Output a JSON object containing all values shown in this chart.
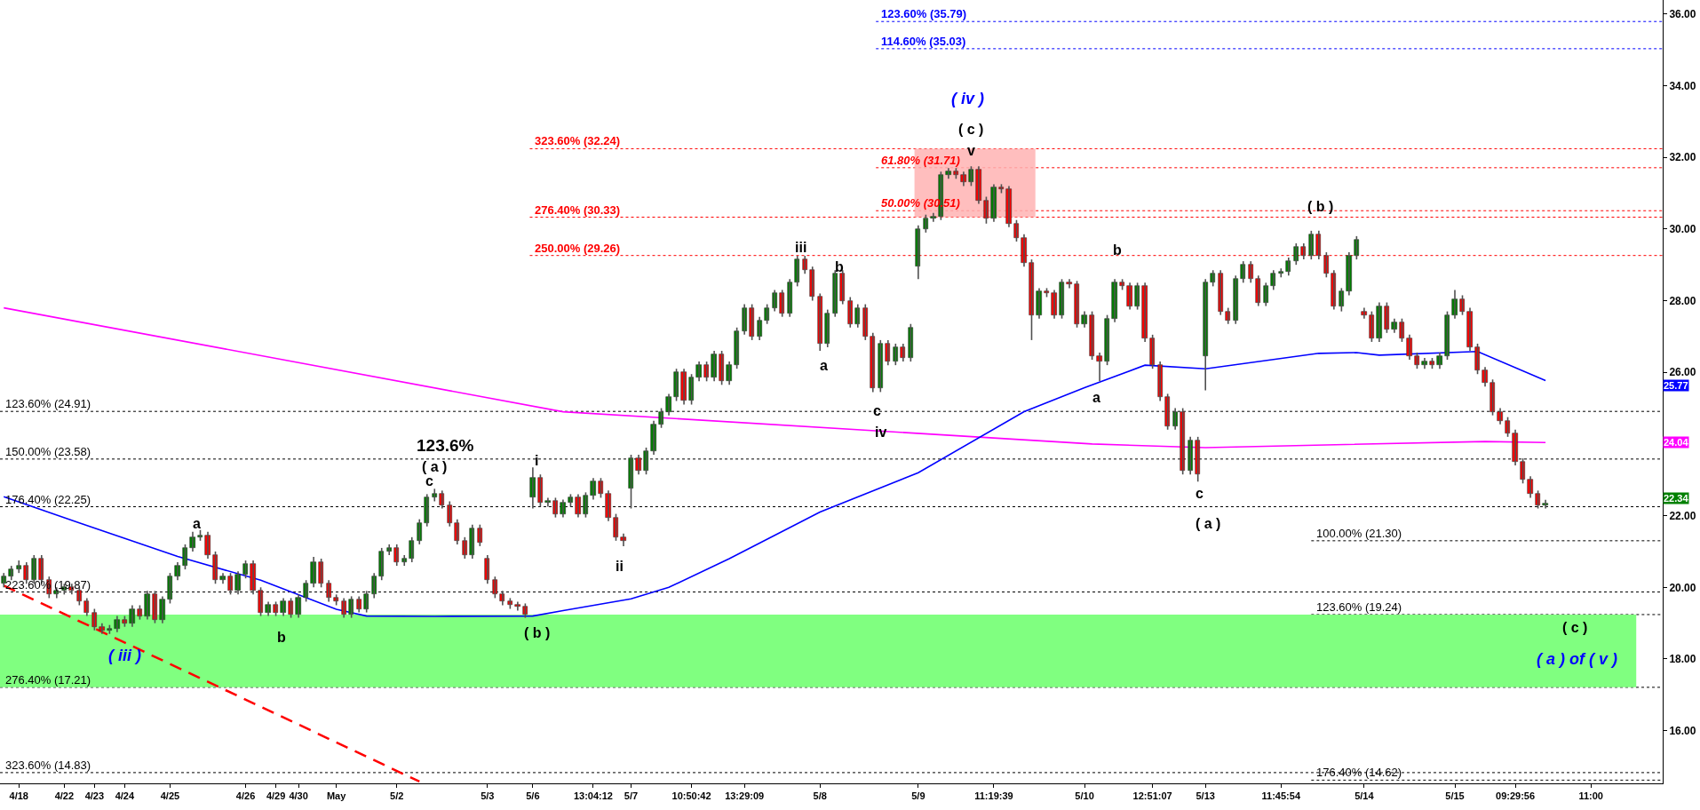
{
  "chart_data": {
    "type": "candlestick",
    "grid": false,
    "ylim": [
      14.53,
      36.39
    ],
    "yticks": [
      {
        "value": 16,
        "label": "16.00"
      },
      {
        "value": 18,
        "label": "18.00"
      },
      {
        "value": 20,
        "label": "20.00"
      },
      {
        "value": 22,
        "label": "22.00"
      },
      {
        "value": 24,
        "label": null
      },
      {
        "value": 26,
        "label": "26.00"
      },
      {
        "value": 28,
        "label": "28.00"
      },
      {
        "value": 30,
        "label": "30.00"
      },
      {
        "value": 32,
        "label": "32.00"
      },
      {
        "value": 34,
        "label": "34.00"
      },
      {
        "value": 36,
        "label": "36.00"
      }
    ],
    "categories": [
      null,
      null,
      "4/18",
      null,
      null,
      null,
      null,
      null,
      "4/22",
      null,
      null,
      null,
      "4/23",
      null,
      null,
      null,
      "4/24",
      null,
      null,
      null,
      null,
      null,
      "4/25",
      null,
      null,
      null,
      null,
      null,
      null,
      null,
      null,
      null,
      "4/26",
      null,
      null,
      null,
      "4/29",
      null,
      null,
      "4/30",
      null,
      null,
      null,
      null,
      "May",
      null,
      null,
      null,
      null,
      null,
      null,
      null,
      "5/2",
      null,
      null,
      null,
      null,
      null,
      null,
      null,
      null,
      null,
      null,
      null,
      "5/3",
      null,
      null,
      null,
      null,
      null,
      "5/6",
      null,
      null,
      null,
      null,
      null,
      null,
      null,
      "13:04:12",
      null,
      null,
      null,
      null,
      "5/7",
      null,
      null,
      null,
      null,
      null,
      null,
      null,
      "10:50:42",
      null,
      null,
      null,
      null,
      null,
      null,
      "13:29:09",
      null,
      null,
      null,
      null,
      null,
      null,
      null,
      null,
      null,
      "5/8",
      null,
      null,
      null,
      null,
      null,
      null,
      null,
      null,
      null,
      null,
      null,
      null,
      "5/9",
      null,
      null,
      null,
      null,
      null,
      null,
      null,
      null,
      null,
      "11:19:39",
      null,
      null,
      null,
      null,
      null,
      null,
      null,
      null,
      null,
      null,
      null,
      "5/10",
      null,
      null,
      null,
      null,
      null,
      null,
      null,
      null,
      "12:51:07",
      null,
      null,
      null,
      null,
      null,
      null,
      "5/13",
      null,
      null,
      null,
      null,
      null,
      null,
      null,
      null,
      null,
      "11:45:54",
      null,
      null,
      null,
      null,
      null,
      null,
      null,
      null,
      null,
      null,
      "5/14",
      null,
      null,
      null,
      null,
      null,
      null,
      null,
      null,
      null,
      null,
      null,
      "5/15",
      null,
      null,
      null,
      null,
      null,
      null,
      null,
      "09:29:56",
      null,
      null,
      null,
      null,
      null,
      null,
      null,
      null,
      null,
      "11:00",
      null,
      null,
      null,
      null,
      null,
      null,
      null,
      null,
      null
    ],
    "ohlc": [
      [
        20.1,
        20.4,
        20.0,
        20.3
      ],
      [
        20.3,
        20.6,
        20.2,
        20.5
      ],
      [
        20.5,
        20.75,
        20.4,
        20.6
      ],
      [
        20.6,
        20.7,
        20.1,
        20.2
      ],
      [
        20.2,
        20.9,
        20.1,
        20.8
      ],
      [
        20.8,
        20.9,
        20.1,
        20.2
      ],
      [
        20.2,
        20.3,
        19.7,
        19.8
      ],
      [
        19.8,
        20.0,
        19.7,
        19.9
      ],
      [
        19.9,
        20.1,
        19.8,
        20.0
      ],
      [
        20.0,
        20.1,
        19.8,
        19.9
      ],
      [
        19.9,
        20.0,
        19.5,
        19.6
      ],
      [
        19.6,
        19.7,
        19.2,
        19.3
      ],
      [
        19.3,
        19.4,
        18.8,
        18.9
      ],
      [
        18.9,
        19.0,
        18.7,
        18.8
      ],
      [
        18.8,
        18.95,
        18.7,
        18.85
      ],
      [
        18.85,
        19.2,
        18.75,
        19.1
      ],
      [
        19.1,
        19.2,
        18.9,
        19.0
      ],
      [
        19.0,
        19.5,
        18.9,
        19.4
      ],
      [
        19.4,
        19.5,
        19.1,
        19.2
      ],
      [
        19.2,
        19.9,
        19.1,
        19.8
      ],
      [
        19.8,
        19.9,
        19.0,
        19.1
      ],
      [
        19.1,
        19.75,
        19.0,
        19.65
      ],
      [
        19.65,
        20.4,
        19.55,
        20.3
      ],
      [
        20.3,
        20.7,
        20.2,
        20.6
      ],
      [
        20.6,
        21.2,
        20.5,
        21.1
      ],
      [
        21.1,
        21.55,
        21.0,
        21.4
      ],
      [
        21.4,
        21.6,
        21.3,
        21.45
      ],
      [
        21.45,
        21.55,
        20.8,
        20.9
      ],
      [
        20.9,
        21.0,
        20.1,
        20.2
      ],
      [
        20.2,
        20.4,
        20.1,
        20.3
      ],
      [
        20.3,
        20.4,
        19.8,
        19.9
      ],
      [
        19.9,
        20.45,
        19.8,
        20.35
      ],
      [
        20.35,
        20.75,
        20.25,
        20.65
      ],
      [
        20.65,
        20.75,
        19.8,
        19.9
      ],
      [
        19.9,
        20.0,
        19.2,
        19.3
      ],
      [
        19.3,
        19.6,
        19.2,
        19.5
      ],
      [
        19.5,
        19.6,
        19.2,
        19.3
      ],
      [
        19.3,
        19.7,
        19.2,
        19.6
      ],
      [
        19.6,
        19.7,
        19.15,
        19.25
      ],
      [
        19.25,
        19.8,
        19.15,
        19.7
      ],
      [
        19.7,
        20.2,
        19.6,
        20.1
      ],
      [
        20.1,
        20.85,
        20.0,
        20.7
      ],
      [
        20.7,
        20.8,
        20.0,
        20.1
      ],
      [
        20.1,
        20.2,
        19.6,
        19.7
      ],
      [
        19.7,
        19.8,
        19.5,
        19.6
      ],
      [
        19.6,
        19.7,
        19.15,
        19.25
      ],
      [
        19.25,
        19.75,
        19.15,
        19.65
      ],
      [
        19.65,
        19.75,
        19.3,
        19.4
      ],
      [
        19.4,
        19.9,
        19.3,
        19.8
      ],
      [
        19.8,
        20.4,
        19.7,
        20.3
      ],
      [
        20.3,
        21.1,
        20.2,
        21.0
      ],
      [
        21.0,
        21.2,
        20.9,
        21.1
      ],
      [
        21.1,
        21.2,
        20.6,
        20.7
      ],
      [
        20.7,
        20.9,
        20.6,
        20.8
      ],
      [
        20.8,
        21.4,
        20.7,
        21.3
      ],
      [
        21.3,
        21.9,
        21.2,
        21.8
      ],
      [
        21.8,
        22.6,
        21.7,
        22.5
      ],
      [
        22.5,
        22.75,
        22.4,
        22.6
      ],
      [
        22.6,
        22.7,
        22.2,
        22.3
      ],
      [
        22.3,
        22.4,
        21.7,
        21.8
      ],
      [
        21.8,
        21.9,
        21.2,
        21.3
      ],
      [
        21.3,
        21.4,
        20.8,
        20.9
      ],
      [
        20.9,
        21.75,
        20.8,
        21.65
      ],
      [
        21.65,
        21.75,
        21.15,
        21.25
      ],
      [
        20.8,
        20.9,
        20.1,
        20.2
      ],
      [
        20.2,
        20.3,
        19.7,
        19.8
      ],
      [
        19.8,
        19.9,
        19.5,
        19.6
      ],
      [
        19.6,
        19.7,
        19.4,
        19.5
      ],
      [
        19.5,
        19.6,
        19.35,
        19.45
      ],
      [
        19.45,
        19.55,
        19.15,
        19.25
      ],
      [
        22.5,
        23.35,
        22.2,
        23.05
      ],
      [
        23.05,
        23.15,
        22.25,
        22.35
      ],
      [
        22.35,
        22.5,
        22.25,
        22.4
      ],
      [
        22.4,
        22.5,
        21.95,
        22.05
      ],
      [
        22.05,
        22.45,
        21.95,
        22.35
      ],
      [
        22.35,
        22.6,
        22.25,
        22.5
      ],
      [
        22.5,
        22.6,
        21.95,
        22.05
      ],
      [
        22.05,
        22.65,
        21.95,
        22.55
      ],
      [
        22.55,
        23.05,
        22.45,
        22.95
      ],
      [
        22.95,
        23.05,
        22.5,
        22.6
      ],
      [
        22.6,
        22.7,
        21.85,
        21.95
      ],
      [
        21.95,
        22.05,
        21.3,
        21.4
      ],
      [
        21.4,
        21.5,
        21.15,
        21.3
      ],
      [
        22.75,
        23.7,
        22.2,
        23.6
      ],
      [
        23.6,
        23.7,
        23.15,
        23.25
      ],
      [
        23.25,
        23.9,
        23.15,
        23.8
      ],
      [
        23.8,
        24.65,
        23.7,
        24.55
      ],
      [
        24.55,
        25.0,
        24.45,
        24.9
      ],
      [
        24.9,
        25.4,
        24.8,
        25.3
      ],
      [
        25.3,
        26.1,
        25.2,
        26.0
      ],
      [
        26.0,
        26.1,
        25.1,
        25.2
      ],
      [
        25.2,
        25.95,
        25.1,
        25.85
      ],
      [
        25.85,
        26.3,
        25.75,
        26.2
      ],
      [
        26.2,
        26.3,
        25.75,
        25.85
      ],
      [
        25.85,
        26.6,
        25.75,
        26.5
      ],
      [
        26.5,
        26.6,
        25.65,
        25.75
      ],
      [
        25.75,
        26.3,
        25.65,
        26.2
      ],
      [
        26.2,
        27.25,
        26.1,
        27.15
      ],
      [
        27.15,
        27.9,
        27.05,
        27.8
      ],
      [
        27.8,
        27.9,
        26.9,
        27.0
      ],
      [
        27.0,
        27.55,
        26.9,
        27.45
      ],
      [
        27.45,
        27.9,
        27.35,
        27.8
      ],
      [
        27.8,
        28.3,
        27.7,
        28.2
      ],
      [
        28.2,
        28.3,
        27.55,
        27.65
      ],
      [
        27.65,
        28.6,
        27.55,
        28.5
      ],
      [
        28.5,
        29.25,
        28.4,
        29.15
      ],
      [
        29.15,
        29.25,
        28.75,
        28.85
      ],
      [
        28.85,
        28.95,
        28.0,
        28.1
      ],
      [
        28.1,
        28.2,
        26.6,
        26.8
      ],
      [
        26.8,
        27.75,
        26.7,
        27.65
      ],
      [
        27.65,
        28.85,
        27.55,
        28.75
      ],
      [
        28.75,
        28.85,
        27.9,
        28.0
      ],
      [
        28.0,
        28.1,
        27.25,
        27.35
      ],
      [
        27.35,
        27.9,
        27.25,
        27.8
      ],
      [
        27.8,
        27.9,
        26.9,
        27.0
      ],
      [
        27.0,
        27.1,
        25.45,
        25.55
      ],
      [
        25.55,
        26.9,
        25.45,
        26.8
      ],
      [
        26.8,
        26.9,
        26.2,
        26.3
      ],
      [
        26.3,
        26.8,
        26.2,
        26.7
      ],
      [
        26.7,
        26.8,
        26.3,
        26.4
      ],
      [
        26.4,
        27.35,
        26.3,
        27.25
      ],
      [
        28.95,
        30.1,
        28.6,
        30.0
      ],
      [
        30.0,
        30.4,
        29.9,
        30.3
      ],
      [
        30.3,
        30.45,
        30.2,
        30.35
      ],
      [
        30.35,
        31.6,
        30.25,
        31.5
      ],
      [
        31.5,
        31.7,
        31.4,
        31.6
      ],
      [
        31.6,
        31.7,
        31.4,
        31.5
      ],
      [
        31.5,
        31.6,
        31.2,
        31.3
      ],
      [
        31.3,
        31.75,
        31.2,
        31.65
      ],
      [
        31.65,
        31.75,
        30.7,
        30.8
      ],
      [
        30.8,
        30.9,
        30.15,
        30.3
      ],
      [
        30.3,
        31.25,
        30.2,
        31.15
      ],
      [
        31.15,
        31.25,
        31.0,
        31.1
      ],
      [
        31.1,
        31.2,
        30.05,
        30.15
      ],
      [
        30.15,
        30.25,
        29.65,
        29.75
      ],
      [
        29.75,
        29.85,
        28.95,
        29.05
      ],
      [
        29.05,
        29.15,
        26.9,
        27.6
      ],
      [
        27.6,
        28.35,
        27.5,
        28.25
      ],
      [
        28.25,
        28.35,
        28.1,
        28.2
      ],
      [
        28.2,
        28.3,
        27.5,
        27.6
      ],
      [
        27.6,
        28.6,
        27.5,
        28.5
      ],
      [
        28.5,
        28.6,
        28.35,
        28.45
      ],
      [
        28.45,
        28.55,
        27.25,
        27.35
      ],
      [
        27.35,
        27.7,
        27.25,
        27.6
      ],
      [
        27.6,
        27.7,
        26.35,
        26.45
      ],
      [
        26.45,
        26.55,
        25.75,
        26.3
      ],
      [
        26.3,
        27.6,
        26.2,
        27.5
      ],
      [
        27.5,
        28.6,
        27.4,
        28.5
      ],
      [
        28.5,
        28.6,
        28.3,
        28.4
      ],
      [
        28.4,
        28.5,
        27.75,
        27.85
      ],
      [
        27.85,
        28.5,
        27.75,
        28.4
      ],
      [
        28.4,
        28.5,
        26.85,
        26.95
      ],
      [
        26.95,
        27.05,
        26.1,
        26.2
      ],
      [
        26.2,
        26.3,
        25.2,
        25.3
      ],
      [
        25.3,
        25.4,
        24.4,
        24.5
      ],
      [
        24.5,
        25.0,
        24.4,
        24.9
      ],
      [
        24.9,
        25.0,
        23.15,
        23.25
      ],
      [
        23.25,
        24.2,
        23.15,
        24.1
      ],
      [
        24.1,
        24.2,
        22.95,
        23.15
      ],
      [
        26.45,
        28.6,
        25.5,
        28.5
      ],
      [
        28.5,
        28.85,
        28.4,
        28.75
      ],
      [
        28.75,
        28.85,
        27.6,
        27.7
      ],
      [
        27.7,
        27.8,
        27.35,
        27.45
      ],
      [
        27.45,
        28.7,
        27.35,
        28.6
      ],
      [
        28.6,
        29.1,
        28.5,
        29.0
      ],
      [
        29.0,
        29.1,
        28.5,
        28.6
      ],
      [
        28.6,
        28.7,
        27.85,
        27.95
      ],
      [
        27.95,
        28.5,
        27.85,
        28.4
      ],
      [
        28.4,
        28.85,
        28.3,
        28.75
      ],
      [
        28.75,
        28.9,
        28.65,
        28.8
      ],
      [
        28.8,
        29.2,
        28.7,
        29.1
      ],
      [
        29.1,
        29.6,
        29.0,
        29.5
      ],
      [
        29.5,
        29.6,
        29.15,
        29.25
      ],
      [
        29.25,
        29.95,
        29.15,
        29.85
      ],
      [
        29.85,
        29.95,
        29.15,
        29.25
      ],
      [
        29.25,
        29.35,
        28.65,
        28.75
      ],
      [
        28.75,
        28.85,
        27.75,
        27.85
      ],
      [
        27.85,
        28.35,
        27.7,
        28.25
      ],
      [
        28.25,
        29.35,
        28.15,
        29.25
      ],
      [
        29.25,
        29.8,
        29.15,
        29.7
      ],
      [
        27.7,
        27.8,
        27.5,
        27.6
      ],
      [
        27.6,
        27.7,
        26.85,
        26.95
      ],
      [
        26.95,
        27.95,
        26.85,
        27.85
      ],
      [
        27.85,
        27.95,
        27.1,
        27.2
      ],
      [
        27.2,
        27.5,
        27.1,
        27.4
      ],
      [
        27.4,
        27.5,
        26.85,
        26.95
      ],
      [
        26.95,
        27.05,
        26.35,
        26.45
      ],
      [
        26.45,
        26.55,
        26.1,
        26.2
      ],
      [
        26.2,
        26.4,
        26.1,
        26.3
      ],
      [
        26.3,
        26.4,
        26.1,
        26.2
      ],
      [
        26.2,
        26.55,
        26.1,
        26.45
      ],
      [
        26.45,
        27.7,
        26.35,
        27.6
      ],
      [
        27.6,
        28.3,
        27.5,
        28.05
      ],
      [
        28.05,
        28.15,
        27.6,
        27.7
      ],
      [
        27.7,
        27.8,
        26.6,
        26.7
      ],
      [
        26.7,
        26.8,
        25.95,
        26.05
      ],
      [
        26.05,
        26.15,
        25.6,
        25.7
      ],
      [
        25.7,
        25.8,
        24.8,
        24.9
      ],
      [
        24.9,
        25.0,
        24.55,
        24.65
      ],
      [
        24.65,
        24.75,
        24.2,
        24.3
      ],
      [
        24.3,
        24.4,
        23.4,
        23.5
      ],
      [
        23.5,
        23.6,
        22.9,
        23.0
      ],
      [
        23.0,
        23.1,
        22.5,
        22.6
      ],
      [
        22.6,
        22.7,
        22.2,
        22.3
      ],
      [
        22.3,
        22.44,
        22.2,
        22.34
      ],
      null,
      null,
      null,
      null,
      null,
      null,
      null,
      null,
      null,
      null,
      null,
      null,
      null,
      null,
      null
    ],
    "series": [
      {
        "type": "line",
        "color": "#ff0000",
        "line_style": "dashed",
        "values": [
          20.05,
          null,
          null,
          null,
          null,
          null,
          null,
          null,
          null,
          null,
          null,
          null,
          null,
          null,
          null,
          null,
          null,
          null,
          null,
          null,
          null,
          null,
          null,
          null,
          null,
          null,
          null,
          null,
          null,
          null,
          null,
          null,
          null,
          null,
          null,
          null,
          null,
          null,
          null,
          null,
          null,
          null,
          null,
          null,
          null,
          null,
          null,
          null,
          null,
          null,
          null,
          null,
          null,
          null,
          null,
          14.58,
          null,
          null,
          null,
          null,
          null,
          null,
          null,
          null,
          null,
          null,
          null,
          null,
          null,
          null,
          null,
          null,
          null,
          null,
          null,
          null,
          null,
          null,
          null,
          null,
          null,
          null,
          null,
          null,
          null,
          null,
          null,
          null,
          null,
          null,
          null,
          null,
          null,
          null,
          null,
          null,
          null,
          null,
          null,
          null,
          null,
          null,
          null,
          null,
          null,
          null,
          null,
          null,
          null,
          null,
          null,
          null,
          null,
          null,
          null,
          null,
          null,
          null,
          null,
          null,
          null,
          null,
          null,
          null,
          null,
          null,
          null,
          null,
          null,
          null,
          null,
          null,
          null,
          null,
          null,
          null,
          null,
          null,
          null,
          null,
          null,
          null,
          null,
          null,
          null,
          null,
          null,
          null,
          null,
          null,
          null,
          null,
          null,
          null,
          null,
          null,
          null,
          null,
          null,
          null,
          null,
          null,
          null,
          null,
          null,
          null,
          null,
          null,
          null,
          null,
          null,
          null,
          null,
          null,
          null,
          null,
          null,
          null,
          null,
          null,
          null,
          null,
          null,
          null,
          null,
          null,
          null,
          null,
          null,
          null,
          null,
          null,
          null,
          null,
          null,
          null,
          null,
          null,
          null,
          null,
          null,
          null,
          null,
          null,
          null,
          null,
          null,
          null,
          null,
          null,
          null,
          null,
          null,
          null,
          null,
          null,
          null,
          null,
          null,
          null
        ]
      },
      {
        "type": "line",
        "color": "#ff00ff",
        "line_style": "solid",
        "values": [
          27.8,
          null,
          null,
          null,
          null,
          null,
          null,
          null,
          null,
          null,
          null,
          null,
          null,
          null,
          null,
          null,
          null,
          null,
          null,
          null,
          null,
          null,
          null,
          null,
          null,
          null,
          null,
          null,
          null,
          null,
          null,
          null,
          null,
          null,
          null,
          null,
          null,
          null,
          null,
          null,
          null,
          null,
          null,
          null,
          null,
          null,
          null,
          null,
          null,
          null,
          null,
          null,
          null,
          null,
          null,
          null,
          null,
          null,
          null,
          null,
          null,
          null,
          null,
          null,
          null,
          null,
          null,
          null,
          null,
          null,
          null,
          null,
          null,
          null,
          24.9,
          null,
          null,
          null,
          null,
          null,
          null,
          null,
          null,
          null,
          null,
          null,
          null,
          null,
          null,
          null,
          null,
          null,
          null,
          null,
          null,
          null,
          null,
          null,
          null,
          null,
          null,
          null,
          null,
          null,
          null,
          null,
          null,
          null,
          null,
          null,
          null,
          null,
          null,
          null,
          null,
          null,
          null,
          null,
          null,
          null,
          null,
          null,
          null,
          null,
          null,
          null,
          null,
          null,
          null,
          null,
          null,
          null,
          null,
          null,
          null,
          null,
          null,
          null,
          null,
          null,
          null,
          null,
          null,
          null,
          24.0,
          null,
          null,
          null,
          null,
          null,
          null,
          null,
          null,
          null,
          null,
          null,
          null,
          null,
          null,
          23.9,
          null,
          null,
          null,
          null,
          null,
          null,
          null,
          null,
          null,
          null,
          null,
          null,
          null,
          null,
          null,
          null,
          null,
          null,
          null,
          null,
          null,
          null,
          null,
          null,
          null,
          null,
          null,
          null,
          null,
          null,
          null,
          null,
          null,
          null,
          null,
          null,
          24.07,
          null,
          null,
          null,
          null,
          null,
          null,
          null,
          24.04,
          null,
          null,
          null,
          null,
          null,
          null,
          null,
          null,
          null,
          null,
          null,
          null,
          null,
          null,
          null
        ]
      },
      {
        "type": "line",
        "color": "#0000ff",
        "line_style": "solid",
        "values": [
          22.53,
          null,
          null,
          null,
          null,
          null,
          null,
          null,
          null,
          null,
          21.8,
          null,
          null,
          null,
          null,
          null,
          null,
          null,
          null,
          null,
          null,
          null,
          null,
          20.86,
          null,
          null,
          null,
          null,
          null,
          null,
          null,
          null,
          null,
          null,
          20.2,
          null,
          null,
          null,
          null,
          null,
          null,
          null,
          null,
          null,
          19.39,
          null,
          null,
          null,
          19.2,
          null,
          null,
          null,
          null,
          null,
          null,
          null,
          null,
          19.19,
          null,
          null,
          null,
          null,
          null,
          null,
          null,
          null,
          null,
          null,
          null,
          null,
          19.2,
          null,
          null,
          null,
          19.35,
          null,
          null,
          null,
          null,
          null,
          null,
          null,
          null,
          19.68,
          null,
          null,
          null,
          null,
          20.0,
          null,
          null,
          null,
          null,
          null,
          null,
          null,
          20.8,
          null,
          null,
          null,
          null,
          null,
          null,
          null,
          null,
          null,
          null,
          null,
          22.1,
          null,
          null,
          null,
          null,
          null,
          null,
          null,
          null,
          null,
          null,
          null,
          null,
          23.2,
          null,
          null,
          null,
          null,
          null,
          null,
          null,
          null,
          null,
          null,
          null,
          null,
          null,
          24.9,
          null,
          null,
          null,
          null,
          null,
          null,
          null,
          25.57,
          null,
          null,
          null,
          null,
          null,
          null,
          null,
          26.2,
          null,
          null,
          null,
          null,
          null,
          null,
          null,
          26.1,
          null,
          null,
          null,
          null,
          null,
          null,
          null,
          null,
          null,
          null,
          null,
          null,
          null,
          null,
          26.53,
          null,
          null,
          null,
          null,
          26.55,
          null,
          null,
          26.48,
          null,
          null,
          null,
          null,
          null,
          null,
          null,
          null,
          null,
          null,
          null,
          null,
          26.58,
          null,
          null,
          null,
          null,
          null,
          null,
          null,
          null,
          25.77,
          null,
          null,
          null,
          null,
          null,
          null,
          null,
          null,
          null,
          null,
          null,
          null,
          null,
          null,
          null
        ]
      }
    ],
    "bands": [
      {
        "axis": "y",
        "from": 17.21,
        "to": 19.24,
        "color": "#80ff80"
      },
      {
        "axis": "y",
        "from": 30.33,
        "to": 32.24,
        "color": "#ffb3b3"
      }
    ],
    "ref_lines": [
      {
        "axis": "y",
        "value": 24.91,
        "label": "123.60% (24.91)",
        "color": "#000000",
        "line_style": "dotted"
      },
      {
        "axis": "y",
        "value": 23.58,
        "label": "150.00% (23.58)",
        "color": "#000000",
        "line_style": "dotted"
      },
      {
        "axis": "y",
        "value": 22.25,
        "label": "176.40% (22.25)",
        "color": "#000000",
        "line_style": "dotted"
      },
      {
        "axis": "y",
        "value": 19.87,
        "label": "223.60% (19.87)",
        "color": "#000000",
        "line_style": "dotted"
      },
      {
        "axis": "y",
        "value": 17.21,
        "label": "276.40% (17.21)",
        "color": "#000000",
        "line_style": "dotted"
      },
      {
        "axis": "y",
        "value": 14.83,
        "label": "323.60% (14.83)",
        "color": "#000000",
        "line_style": "dotted"
      },
      {
        "axis": "y",
        "value": 21.3,
        "label": "100.00% (21.30)",
        "color": "#000000",
        "line_style": "dotted"
      },
      {
        "axis": "y",
        "value": 19.24,
        "label": "123.60% (19.24)",
        "color": "#000000",
        "line_style": "dotted"
      },
      {
        "axis": "y",
        "value": 14.62,
        "label": "176.40% (14.62)",
        "color": "#000000",
        "line_style": "dotted"
      },
      {
        "axis": "y",
        "value": 32.24,
        "label": "323.60% (32.24)",
        "color": "#ff0000",
        "line_style": "dotted"
      },
      {
        "axis": "y",
        "value": 30.33,
        "label": "276.40% (30.33)",
        "color": "#ff0000",
        "line_style": "dotted"
      },
      {
        "axis": "y",
        "value": 29.26,
        "label": "250.00% (29.26)",
        "color": "#ff0000",
        "line_style": "dotted"
      },
      {
        "axis": "y",
        "value": 31.71,
        "label": "61.80% (31.71)",
        "color": "#ff0000",
        "line_style": "dotted"
      },
      {
        "axis": "y",
        "value": 30.51,
        "label": "50.00% (30.51)",
        "color": "#ff0000",
        "line_style": "dotted"
      },
      {
        "axis": "y",
        "value": 35.79,
        "label": "123.60% (35.79)",
        "color": "#0000ff",
        "line_style": "dotted"
      },
      {
        "axis": "y",
        "value": 35.03,
        "label": "114.60% (35.03)",
        "color": "#0000ff",
        "line_style": "dotted"
      }
    ],
    "annotations": [
      "( iv )",
      "( c )",
      "v",
      "iii",
      "b",
      "a",
      "c",
      "iv",
      "i",
      "ii",
      "123.6%",
      "( a )",
      "c",
      "a",
      "b",
      "( iii )",
      "( b )",
      "b",
      "a",
      "( b )",
      "c",
      "( a )",
      "( c )",
      "( a ) of ( v )",
      "25.77",
      "24.04",
      "22.34"
    ]
  }
}
